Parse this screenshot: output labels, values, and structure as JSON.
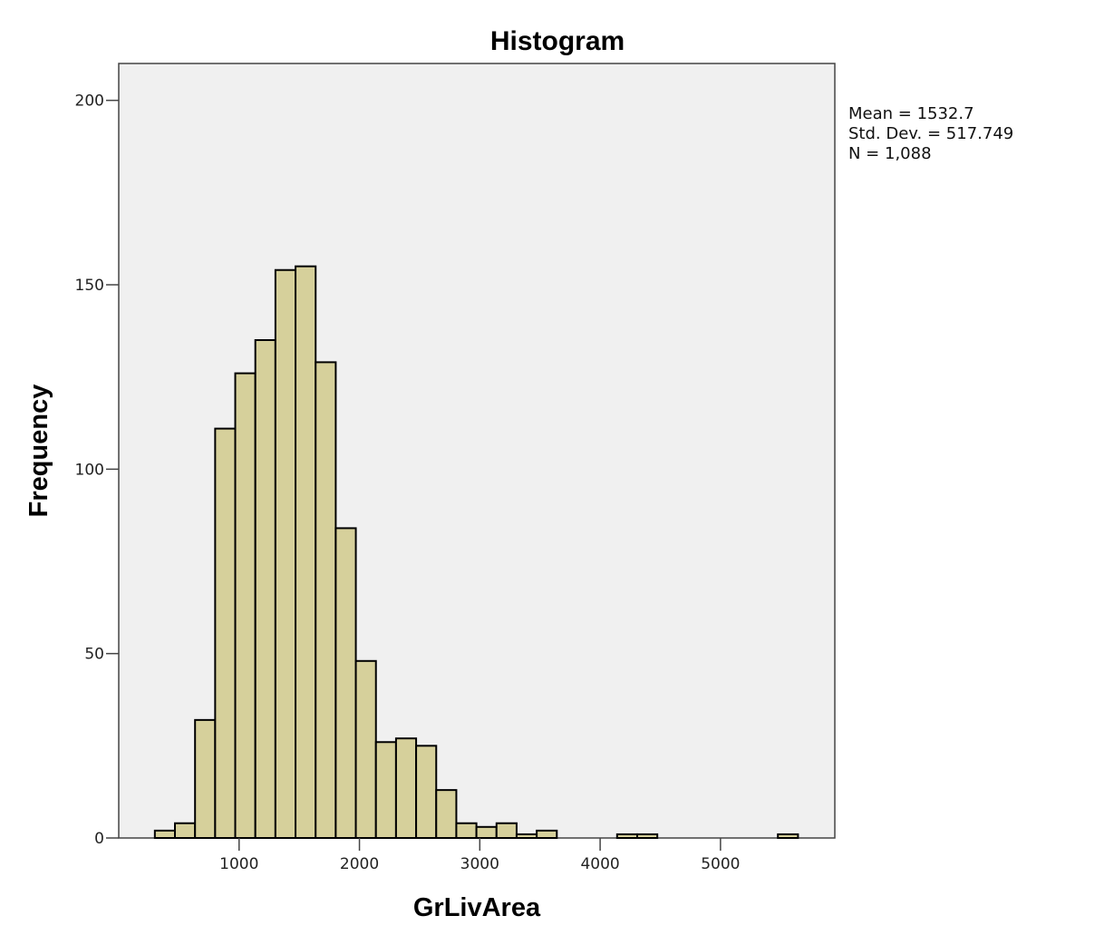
{
  "chart_data": {
    "type": "bar",
    "title": "Histogram",
    "xlabel": "GrLivArea",
    "ylabel": "Frequency",
    "xlim": [
      0,
      5950
    ],
    "ylim": [
      0,
      210
    ],
    "x_ticks": [
      1000,
      2000,
      3000,
      4000,
      5000
    ],
    "y_ticks": [
      0,
      50,
      100,
      150,
      200
    ],
    "bin_width": 167,
    "bins": [
      {
        "start": 300,
        "count": 2
      },
      {
        "start": 467,
        "count": 4
      },
      {
        "start": 634,
        "count": 32
      },
      {
        "start": 801,
        "count": 111
      },
      {
        "start": 968,
        "count": 126
      },
      {
        "start": 1135,
        "count": 135
      },
      {
        "start": 1302,
        "count": 154
      },
      {
        "start": 1469,
        "count": 155
      },
      {
        "start": 1636,
        "count": 129
      },
      {
        "start": 1803,
        "count": 84
      },
      {
        "start": 1970,
        "count": 48
      },
      {
        "start": 2137,
        "count": 26
      },
      {
        "start": 2304,
        "count": 27
      },
      {
        "start": 2471,
        "count": 25
      },
      {
        "start": 2638,
        "count": 13
      },
      {
        "start": 2805,
        "count": 4
      },
      {
        "start": 2972,
        "count": 3
      },
      {
        "start": 3139,
        "count": 4
      },
      {
        "start": 3306,
        "count": 1
      },
      {
        "start": 3473,
        "count": 2
      },
      {
        "start": 3640,
        "count": 0
      },
      {
        "start": 3807,
        "count": 0
      },
      {
        "start": 3974,
        "count": 0
      },
      {
        "start": 4141,
        "count": 1
      },
      {
        "start": 4308,
        "count": 1
      },
      {
        "start": 4475,
        "count": 0
      },
      {
        "start": 4642,
        "count": 0
      },
      {
        "start": 4809,
        "count": 0
      },
      {
        "start": 4976,
        "count": 0
      },
      {
        "start": 5143,
        "count": 0
      },
      {
        "start": 5310,
        "count": 0
      },
      {
        "start": 5477,
        "count": 1
      }
    ],
    "stats": {
      "mean": "Mean = 1532.7",
      "std_dev": "Std. Dev. = 517.749",
      "n": "N = 1,088"
    },
    "bar_color": "#d6d09b",
    "bar_stroke": "#000000",
    "plot_background": "#f0f0f0",
    "grid": false
  }
}
